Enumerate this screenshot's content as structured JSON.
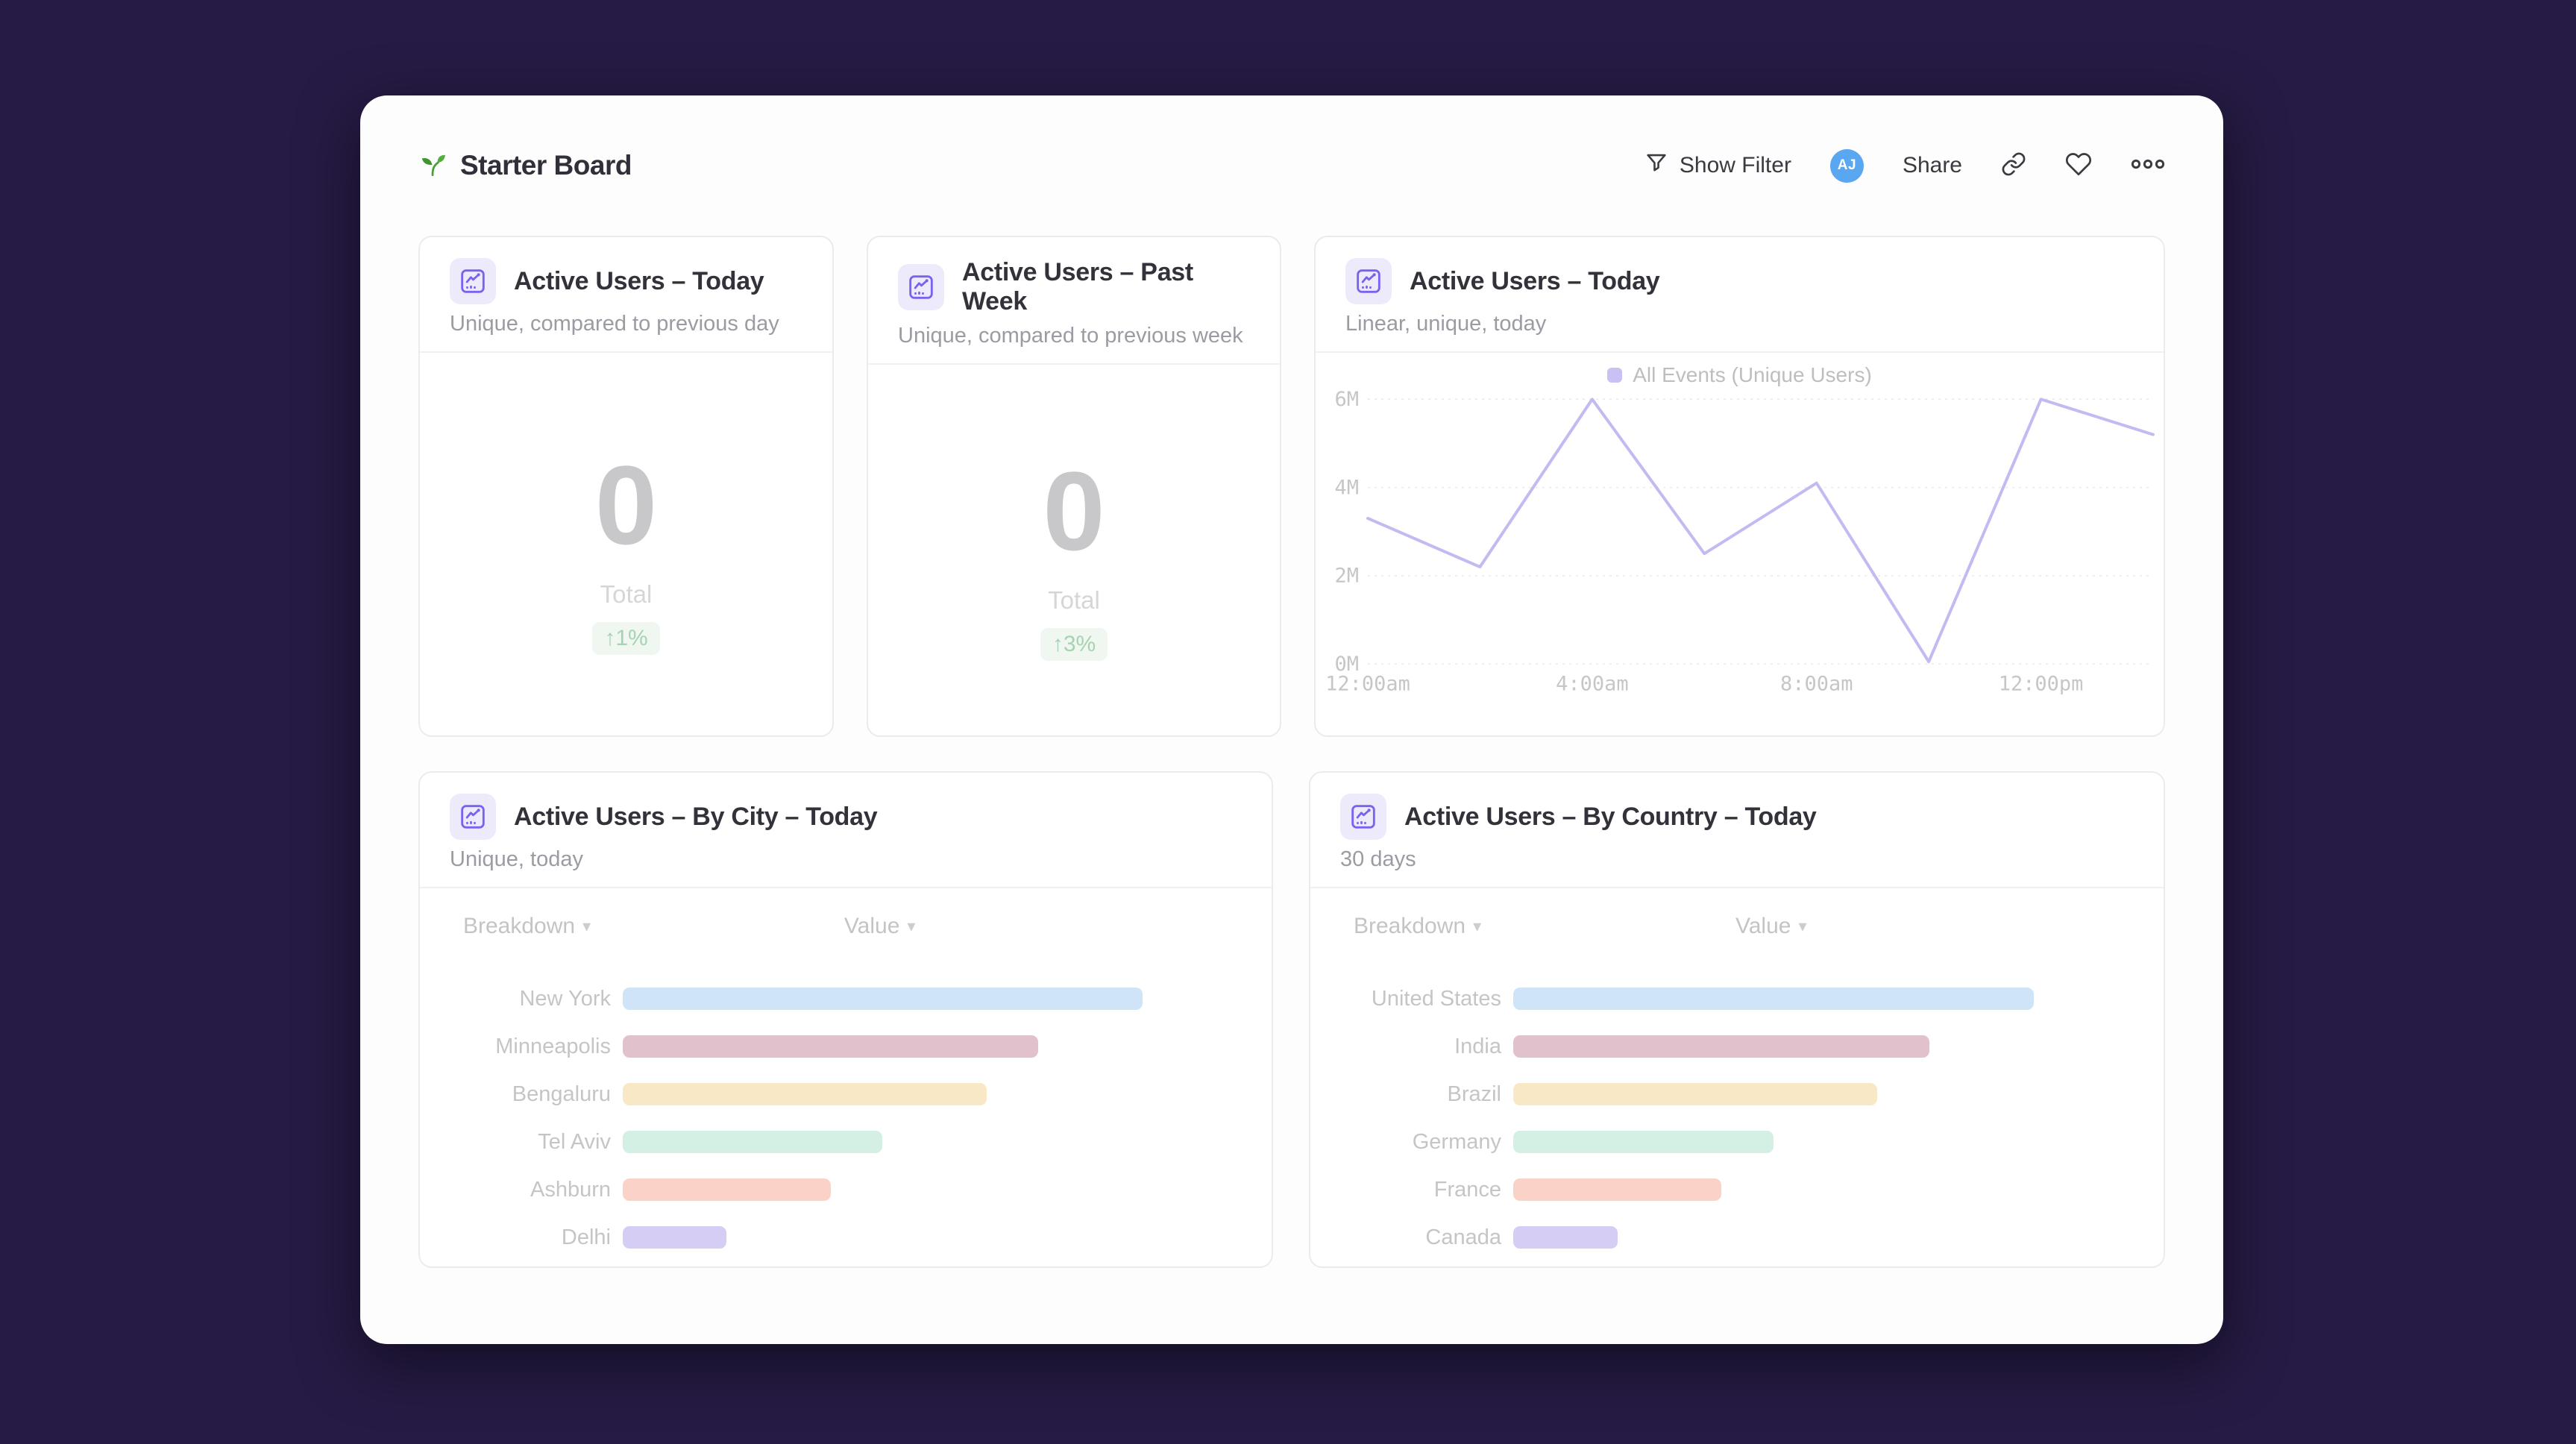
{
  "page": {
    "background": "#261b44",
    "card_background": "#fdfdfd"
  },
  "header": {
    "icon": "seedling-icon",
    "title": "Starter Board",
    "show_filter_label": "Show Filter",
    "avatar_initials": "AJ",
    "share_label": "Share"
  },
  "ui": {
    "sort_chevron": "▾"
  },
  "colors": {
    "accent_purple": "#7b61f0",
    "icon_bg_lavender": "#edeafc",
    "avatar_blue": "#58a7f0",
    "badge_green_text": "#a6d3b4",
    "badge_green_bg": "#f0f7f1",
    "line_purple": "#c3baf2",
    "bar_palette": [
      "#cfe4f7",
      "#e1c1cb",
      "#f9e8c6",
      "#d4efe3",
      "#fbd2c7",
      "#d5cdf3"
    ]
  },
  "panels": {
    "today_total": {
      "title": "Active Users – Today",
      "subtitle": "Unique, compared to previous day",
      "value": "0",
      "value_label": "Total",
      "delta": "↑1%"
    },
    "past_week_total": {
      "title": "Active Users – Past Week",
      "subtitle": "Unique, compared to previous week",
      "value": "0",
      "value_label": "Total",
      "delta": "↑3%"
    },
    "today_line": {
      "title": "Active Users – Today",
      "subtitle": "Linear, unique, today",
      "legend": "All Events (Unique Users)"
    },
    "by_city": {
      "title": "Active Users – By City – Today",
      "subtitle": "Unique, today",
      "columns": [
        "Breakdown",
        "Value"
      ]
    },
    "by_country": {
      "title": "Active Users – By Country – Today",
      "subtitle": "30 days",
      "columns": [
        "Breakdown",
        "Value"
      ]
    }
  },
  "chart_data": [
    {
      "id": "today_line",
      "type": "line",
      "title": "Active Users – Today",
      "legend_position": "top",
      "grid": true,
      "x": [
        "12:00am",
        "2:00am",
        "4:00am",
        "6:00am",
        "8:00am",
        "10:00am",
        "12:00pm",
        "2:00pm"
      ],
      "x_tick_labels": [
        "12:00am",
        "4:00am",
        "8:00am",
        "12:00pm"
      ],
      "x_tick_indices": [
        0,
        2,
        4,
        6
      ],
      "ylabel": "",
      "ylim": [
        0,
        6000000
      ],
      "y_ticks": [
        0,
        2000000,
        4000000,
        6000000
      ],
      "y_tick_labels": [
        "0M",
        "2M",
        "4M",
        "6M"
      ],
      "series": [
        {
          "name": "All Events (Unique Users)",
          "values": [
            3300000,
            2200000,
            6000000,
            2500000,
            4100000,
            50000,
            6000000,
            5200000
          ]
        }
      ],
      "line_color": "#c3baf2"
    },
    {
      "id": "by_city",
      "type": "bar",
      "orientation": "horizontal",
      "title": "Active Users – By City – Today",
      "categories": [
        "New York",
        "Minneapolis",
        "Bengaluru",
        "Tel Aviv",
        "Ashburn",
        "Delhi"
      ],
      "values": [
        100,
        80,
        70,
        50,
        40,
        20
      ],
      "value_unit": "percent-of-max (no numeric axis shown)",
      "bar_colors": [
        "#cfe4f7",
        "#e1c1cb",
        "#f9e8c6",
        "#d4efe3",
        "#fbd2c7",
        "#d5cdf3"
      ]
    },
    {
      "id": "by_country",
      "type": "bar",
      "orientation": "horizontal",
      "title": "Active Users – By Country – Today",
      "categories": [
        "United States",
        "India",
        "Brazil",
        "Germany",
        "France",
        "Canada"
      ],
      "values": [
        100,
        80,
        70,
        50,
        40,
        20
      ],
      "value_unit": "percent-of-max (no numeric axis shown)",
      "bar_colors": [
        "#cfe4f7",
        "#e1c1cb",
        "#f9e8c6",
        "#d4efe3",
        "#fbd2c7",
        "#d5cdf3"
      ]
    }
  ]
}
